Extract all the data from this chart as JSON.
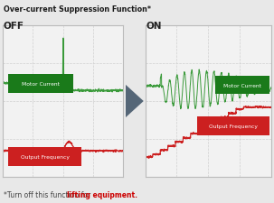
{
  "title": "Over-current Suppression Function*",
  "title_color": "#1a1a1a",
  "subtitle_normal": "*Turn off this function for ",
  "subtitle_bold": "lifting equipment.",
  "subtitle_color": "#444444",
  "subtitle_bold_color": "#cc0000",
  "bg_color": "#e8e8e8",
  "panel_bg": "#f2f2f2",
  "grid_color": "#d0d0d0",
  "off_label": "OFF",
  "on_label": "ON",
  "motor_current_label": "Motor Current",
  "output_freq_label": "Output Frequency",
  "motor_current_color": "#3a9a3a",
  "output_freq_color": "#cc2020",
  "label_bg_motor": "#1a7a1a",
  "label_bg_output": "#cc2020",
  "label_text_color": "#ffffff",
  "arrow_color": "#556677",
  "border_color": "#bbbbbb"
}
